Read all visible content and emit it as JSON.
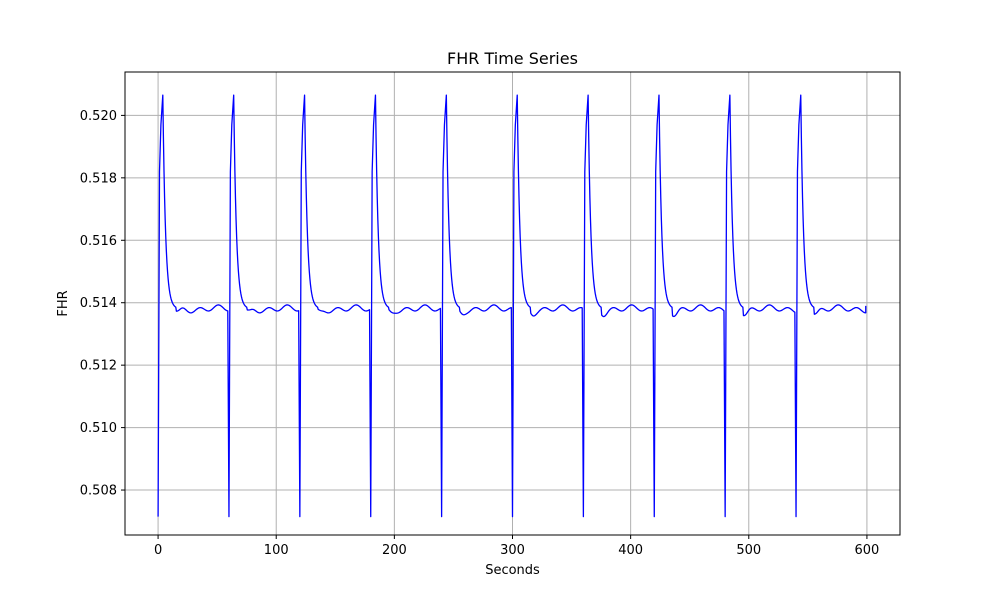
{
  "chart_data": {
    "type": "line",
    "title": "FHR Time Series",
    "xlabel": "Seconds",
    "ylabel": "FHR",
    "xlim": [
      -28,
      628
    ],
    "ylim": [
      0.50656,
      0.52139
    ],
    "xticks": [
      0,
      100,
      200,
      300,
      400,
      500,
      600
    ],
    "xtick_labels": [
      "0",
      "100",
      "200",
      "300",
      "400",
      "500",
      "600"
    ],
    "yticks": [
      0.508,
      0.51,
      0.512,
      0.514,
      0.516,
      0.518,
      0.52
    ],
    "ytick_labels": [
      "0.508",
      "0.510",
      "0.512",
      "0.514",
      "0.516",
      "0.518",
      "0.520"
    ],
    "grid": true,
    "line_color": "#0000ff",
    "series": [
      {
        "cycle_starts": [
          0,
          60,
          120,
          180,
          240,
          300,
          360,
          420,
          480,
          540
        ],
        "cycle_length": 60,
        "trough_value": 0.50715,
        "peak_value": 0.52065,
        "peak_offset": 4,
        "baseline_value": 0.5138,
        "end_x": 599,
        "end_value": 0.5139
      }
    ]
  }
}
